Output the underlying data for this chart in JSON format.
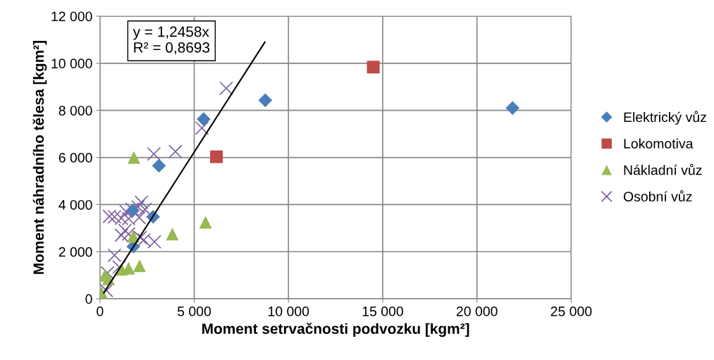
{
  "chart_data": {
    "type": "scatter",
    "xlabel": "Moment setrvačnosti podvozku [kgm²]",
    "ylabel": "Moment náhradního tělesa [kgm²]",
    "xlim": [
      0,
      25000
    ],
    "ylim": [
      0,
      12000
    ],
    "xticks": [
      {
        "value": 0,
        "label": "0"
      },
      {
        "value": 5000,
        "label": "5 000"
      },
      {
        "value": 10000,
        "label": "10 000"
      },
      {
        "value": 15000,
        "label": "15 000"
      },
      {
        "value": 20000,
        "label": "20 000"
      },
      {
        "value": 25000,
        "label": "25 000"
      }
    ],
    "yticks": [
      {
        "value": 0,
        "label": "0"
      },
      {
        "value": 2000,
        "label": "2 000"
      },
      {
        "value": 4000,
        "label": "4 000"
      },
      {
        "value": 6000,
        "label": "6 000"
      },
      {
        "value": 8000,
        "label": "8 000"
      },
      {
        "value": 10000,
        "label": "10 000"
      },
      {
        "value": 12000,
        "label": "12 000"
      }
    ],
    "grid": true,
    "legend": "right",
    "annotations": [
      "y = 1,2458x\nR² = 0,8693"
    ],
    "series": [
      {
        "name": "Elektrický vůz",
        "color": "#4a7ebb",
        "marker": "diamond",
        "x": [
          5500,
          3130,
          2820,
          1770,
          1740,
          8770,
          21890
        ],
        "values": [
          7630,
          5650,
          3480,
          2220,
          3750,
          8430,
          8100
        ]
      },
      {
        "name": "Lokomotiva",
        "color": "#be4b48",
        "marker": "square",
        "x": [
          14500,
          6180
        ],
        "values": [
          9840,
          6030
        ]
      },
      {
        "name": "Nákladní vůz",
        "color": "#98b954",
        "marker": "triangle",
        "x": [
          1800,
          5600,
          3840,
          1770,
          2100,
          1520,
          1140,
          270,
          450,
          90
        ],
        "values": [
          6000,
          3250,
          2750,
          2650,
          1400,
          1300,
          1250,
          1000,
          850,
          250
        ]
      },
      {
        "name": "Osobní vůz",
        "color": "#7d60a0",
        "marker": "cross",
        "x": [
          5410,
          2860,
          4000,
          6700,
          500,
          770,
          1140,
          1520,
          1390,
          1700,
          2020,
          2200,
          2390,
          2080,
          1330,
          1520,
          1140,
          2140,
          2330,
          2890,
          770,
          1020,
          400,
          340
        ],
        "values": [
          7250,
          6150,
          6250,
          8940,
          3500,
          3480,
          3420,
          3400,
          3700,
          3800,
          3900,
          4100,
          3800,
          3450,
          2900,
          2750,
          2700,
          2600,
          2500,
          2420,
          1850,
          1350,
          1100,
          350
        ]
      },
      {
        "type": "line",
        "color": "#000000",
        "marker": "none",
        "x": [
          200,
          8750
        ],
        "values": [
          250,
          10900
        ]
      }
    ]
  }
}
